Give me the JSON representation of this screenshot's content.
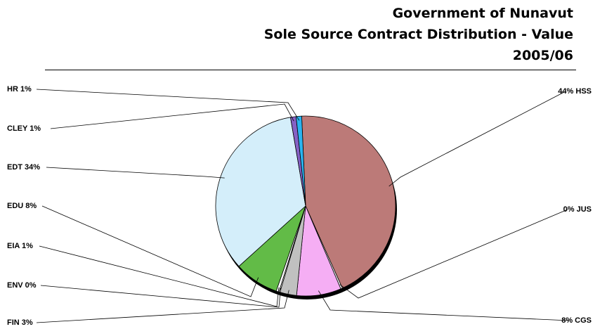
{
  "chart_data": {
    "type": "pie",
    "title_lines": [
      "Government of Nunavut",
      "Sole Source Contract Distribution - Value",
      "2005/06"
    ],
    "slices": [
      {
        "key": "HSS",
        "label": "44% HSS",
        "value": 44,
        "color": "#BC7A78"
      },
      {
        "key": "JUS",
        "label": "0% JUS",
        "value": 0.3,
        "color": "#ffffff"
      },
      {
        "key": "CGS",
        "label": "8% CGS",
        "value": 8,
        "color": "#F5AEF4"
      },
      {
        "key": "FIN",
        "label": "FIN 3%",
        "value": 3,
        "color": "#C0C0C0"
      },
      {
        "key": "ENV",
        "label": "ENV 0%",
        "value": 0.2,
        "color": "#ffffff"
      },
      {
        "key": "EIA",
        "label": "EIA 1%",
        "value": 0.5,
        "color": "#ffffff"
      },
      {
        "key": "EDU",
        "label": "EDU 8%",
        "value": 8,
        "color": "#62BB47"
      },
      {
        "key": "EDT",
        "label": "EDT 34%",
        "value": 34,
        "color": "#D4EEFA"
      },
      {
        "key": "CLEY",
        "label": "CLEY 1%",
        "value": 1,
        "color": "#8561C5"
      },
      {
        "key": "HR",
        "label": "HR 1%",
        "value": 1,
        "color": "#2AB4F0"
      }
    ]
  }
}
